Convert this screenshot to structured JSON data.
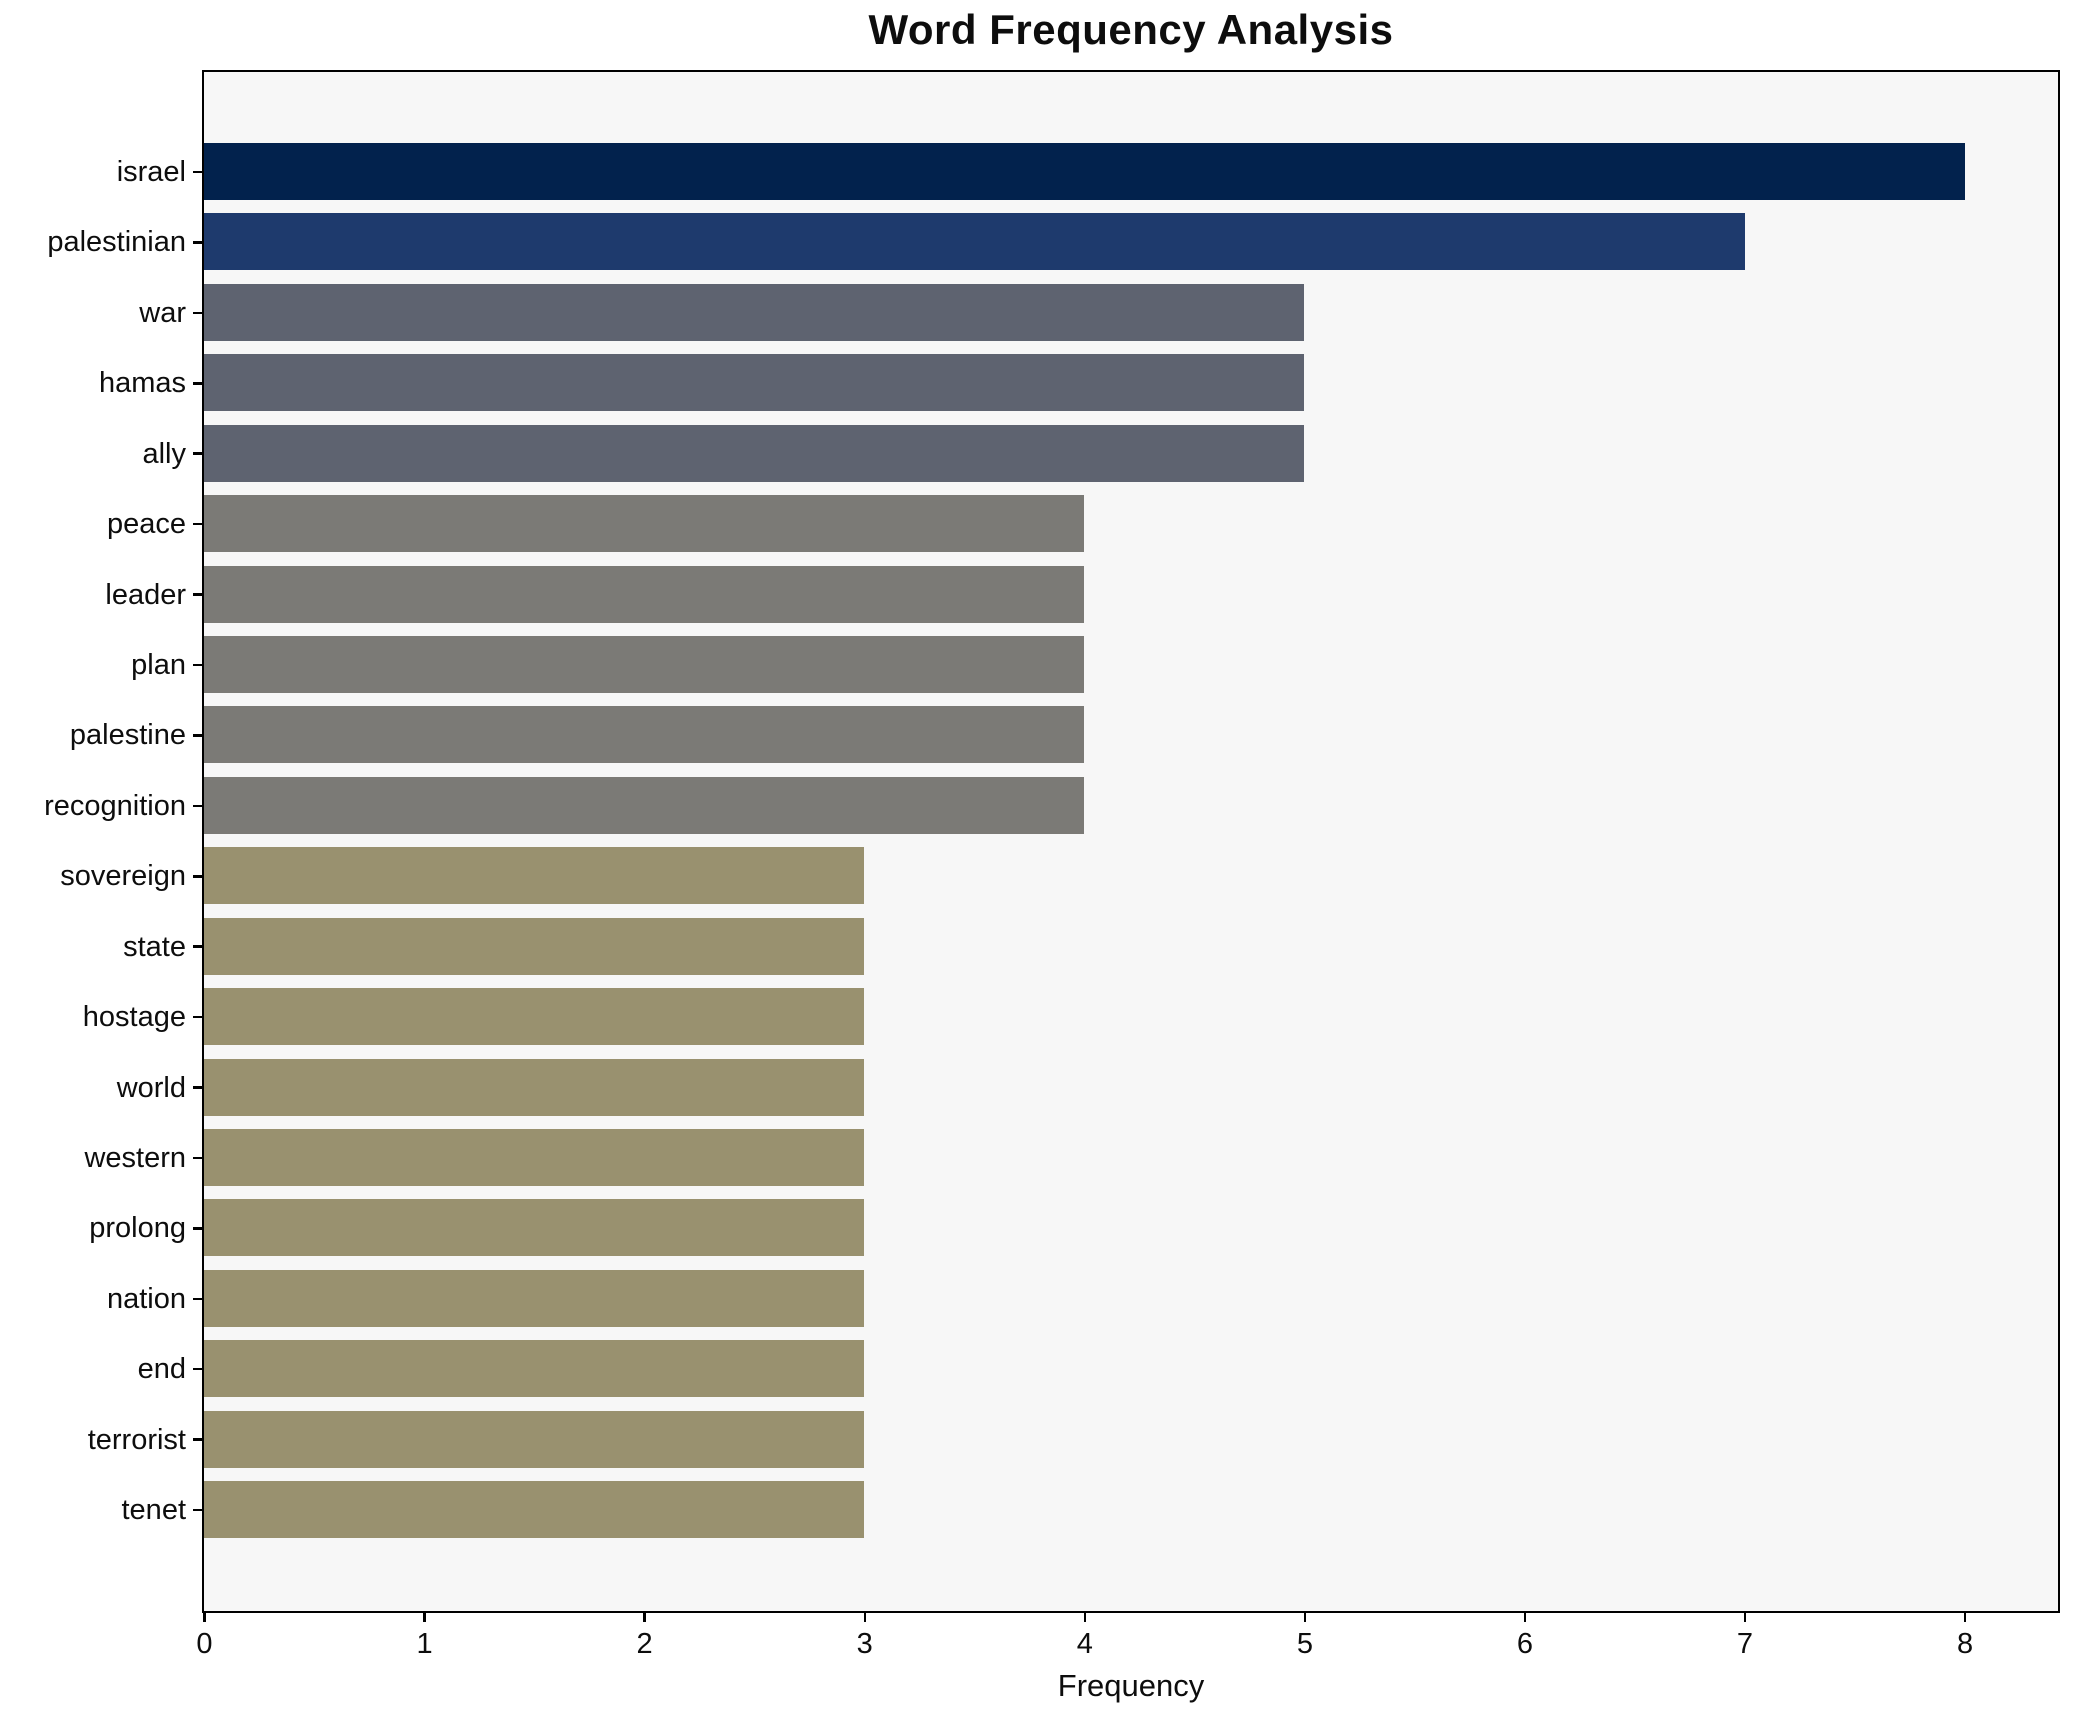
{
  "figure": {
    "background": "#ffffff",
    "plot_background": "#f7f7f7",
    "spine_color": "#000000"
  },
  "chart_data": {
    "type": "bar",
    "orientation": "horizontal",
    "title": "Word Frequency Analysis",
    "xlabel": "Frequency",
    "ylabel": "",
    "categories": [
      "israel",
      "palestinian",
      "war",
      "hamas",
      "ally",
      "peace",
      "leader",
      "plan",
      "palestine",
      "recognition",
      "sovereign",
      "state",
      "hostage",
      "world",
      "western",
      "prolong",
      "nation",
      "end",
      "terrorist",
      "tenet"
    ],
    "values": [
      8,
      7,
      5,
      5,
      5,
      4,
      4,
      4,
      4,
      4,
      3,
      3,
      3,
      3,
      3,
      3,
      3,
      3,
      3,
      3
    ],
    "colors": [
      "#02224d",
      "#1e3a6d",
      "#5e6370",
      "#5e6370",
      "#5e6370",
      "#7b7a76",
      "#7b7a76",
      "#7b7a76",
      "#7b7a76",
      "#7b7a76",
      "#99916f",
      "#99916f",
      "#99916f",
      "#99916f",
      "#99916f",
      "#99916f",
      "#99916f",
      "#99916f",
      "#99916f",
      "#99916f"
    ],
    "xticks": [
      0,
      1,
      2,
      3,
      4,
      5,
      6,
      7,
      8
    ],
    "xlim": [
      0,
      8.42
    ],
    "grid": false,
    "legend": false
  }
}
